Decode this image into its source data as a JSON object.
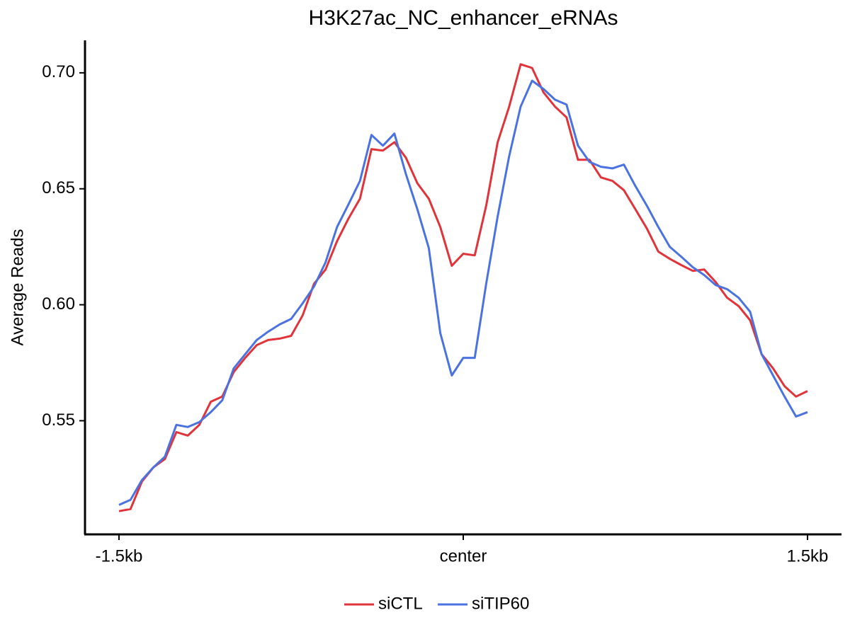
{
  "chart_data": {
    "type": "line",
    "title": "H3K27ac_NC_enhancer_eRNAs",
    "y_label": "Average Reads",
    "x": [
      -1.5,
      -1.45,
      -1.4,
      -1.35,
      -1.3,
      -1.25,
      -1.2,
      -1.15,
      -1.1,
      -1.05,
      -1.0,
      -0.95,
      -0.9,
      -0.85,
      -0.8,
      -0.75,
      -0.7,
      -0.65,
      -0.6,
      -0.55,
      -0.5,
      -0.45,
      -0.4,
      -0.35,
      -0.3,
      -0.25,
      -0.2,
      -0.15,
      -0.1,
      -0.05,
      0,
      0.05,
      0.1,
      0.15,
      0.2,
      0.25,
      0.3,
      0.35,
      0.4,
      0.45,
      0.5,
      0.55,
      0.6,
      0.65,
      0.7,
      0.75,
      0.8,
      0.85,
      0.9,
      0.95,
      1.0,
      1.05,
      1.1,
      1.15,
      1.2,
      1.25,
      1.3,
      1.35,
      1.4,
      1.45,
      1.5
    ],
    "series": [
      {
        "name": "siCTL",
        "color": "#e0333a",
        "values": [
          0.511,
          0.5119,
          0.5238,
          0.5299,
          0.5335,
          0.5451,
          0.5436,
          0.5482,
          0.5582,
          0.5604,
          0.571,
          0.5771,
          0.5826,
          0.5848,
          0.5854,
          0.5866,
          0.5954,
          0.6091,
          0.6152,
          0.6274,
          0.6372,
          0.6457,
          0.6671,
          0.6665,
          0.6701,
          0.6634,
          0.6524,
          0.6457,
          0.6335,
          0.6168,
          0.622,
          0.6213,
          0.6427,
          0.6701,
          0.6854,
          0.7037,
          0.7021,
          0.6915,
          0.6854,
          0.6808,
          0.6625,
          0.6625,
          0.6549,
          0.6534,
          0.6494,
          0.6412,
          0.6329,
          0.6229,
          0.6198,
          0.6171,
          0.6146,
          0.6152,
          0.6098,
          0.603,
          0.5994,
          0.5933,
          0.5787,
          0.5726,
          0.5649,
          0.5604,
          0.5628
        ]
      },
      {
        "name": "siTIP60",
        "color": "#4a72e0",
        "values": [
          0.5137,
          0.5159,
          0.5244,
          0.5299,
          0.5345,
          0.5482,
          0.5473,
          0.5494,
          0.5537,
          0.5588,
          0.5726,
          0.5787,
          0.5848,
          0.5884,
          0.5915,
          0.5939,
          0.6006,
          0.6079,
          0.6183,
          0.6335,
          0.6433,
          0.6534,
          0.6732,
          0.6686,
          0.6738,
          0.6564,
          0.6412,
          0.6244,
          0.5878,
          0.5695,
          0.5771,
          0.5771,
          0.6091,
          0.6381,
          0.664,
          0.6854,
          0.6966,
          0.693,
          0.6884,
          0.6863,
          0.6686,
          0.6616,
          0.6595,
          0.6588,
          0.6604,
          0.6512,
          0.6427,
          0.6335,
          0.625,
          0.6207,
          0.6162,
          0.6128,
          0.6085,
          0.6067,
          0.603,
          0.597,
          0.5787,
          0.5695,
          0.5604,
          0.5518,
          0.5537
        ]
      }
    ],
    "xlim": [
      -1.648,
      1.648
    ],
    "xticks": [
      {
        "value": -1.5,
        "label": "-1.5kb"
      },
      {
        "value": 0,
        "label": "center"
      },
      {
        "value": 1.5,
        "label": "1.5kb"
      }
    ],
    "ylim": [
      0.501,
      0.714
    ],
    "yticks": [
      {
        "value": 0.55,
        "label": "0.55"
      },
      {
        "value": 0.6,
        "label": "0.60"
      },
      {
        "value": 0.65,
        "label": "0.65"
      },
      {
        "value": 0.7,
        "label": "0.70"
      }
    ],
    "grid": false,
    "legend": "bottom"
  }
}
